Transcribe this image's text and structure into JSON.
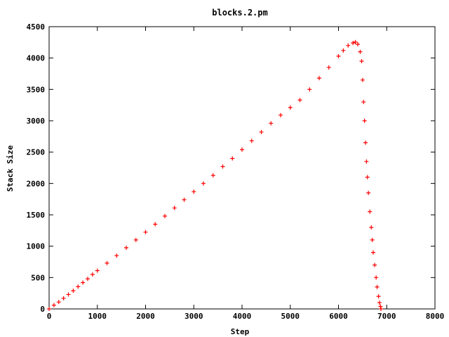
{
  "chart_data": {
    "type": "scatter",
    "title": "blocks.2.pm",
    "xlabel": "Step",
    "ylabel": "Stack Size",
    "xlim": [
      0,
      8000
    ],
    "ylim": [
      0,
      4500
    ],
    "xticks": [
      0,
      1000,
      2000,
      3000,
      4000,
      5000,
      6000,
      7000,
      8000
    ],
    "yticks": [
      0,
      500,
      1000,
      1500,
      2000,
      2500,
      3000,
      3500,
      4000,
      4500
    ],
    "xtick_labels": [
      "0",
      "1000",
      "2000",
      "3000",
      "4000",
      "5000",
      "6000",
      "7000",
      "8000"
    ],
    "ytick_labels": [
      "0",
      "500",
      "1000",
      "1500",
      "2000",
      "2500",
      "3000",
      "3500",
      "4000",
      "4500"
    ],
    "grid": false,
    "marker": "+",
    "series": [
      {
        "color": "#ff0000",
        "points": [
          [
            0,
            0
          ],
          [
            100,
            60
          ],
          [
            200,
            110
          ],
          [
            300,
            170
          ],
          [
            400,
            230
          ],
          [
            500,
            290
          ],
          [
            600,
            355
          ],
          [
            700,
            420
          ],
          [
            800,
            480
          ],
          [
            900,
            550
          ],
          [
            1000,
            610
          ],
          [
            1200,
            730
          ],
          [
            1400,
            850
          ],
          [
            1600,
            975
          ],
          [
            1800,
            1100
          ],
          [
            2000,
            1225
          ],
          [
            2200,
            1350
          ],
          [
            2400,
            1480
          ],
          [
            2600,
            1610
          ],
          [
            2800,
            1740
          ],
          [
            3000,
            1870
          ],
          [
            3200,
            2000
          ],
          [
            3400,
            2130
          ],
          [
            3600,
            2270
          ],
          [
            3800,
            2400
          ],
          [
            4000,
            2540
          ],
          [
            4200,
            2680
          ],
          [
            4400,
            2820
          ],
          [
            4600,
            2960
          ],
          [
            4800,
            3090
          ],
          [
            5000,
            3210
          ],
          [
            5200,
            3330
          ],
          [
            5400,
            3500
          ],
          [
            5600,
            3680
          ],
          [
            5800,
            3850
          ],
          [
            6000,
            4030
          ],
          [
            6100,
            4120
          ],
          [
            6200,
            4200
          ],
          [
            6300,
            4240
          ],
          [
            6350,
            4255
          ],
          [
            6400,
            4220
          ],
          [
            6450,
            4100
          ],
          [
            6480,
            3950
          ],
          [
            6500,
            3650
          ],
          [
            6520,
            3300
          ],
          [
            6540,
            3000
          ],
          [
            6560,
            2650
          ],
          [
            6580,
            2350
          ],
          [
            6600,
            2100
          ],
          [
            6620,
            1850
          ],
          [
            6650,
            1550
          ],
          [
            6680,
            1300
          ],
          [
            6700,
            1100
          ],
          [
            6720,
            900
          ],
          [
            6750,
            700
          ],
          [
            6780,
            500
          ],
          [
            6800,
            350
          ],
          [
            6830,
            200
          ],
          [
            6850,
            100
          ],
          [
            6870,
            40
          ],
          [
            6880,
            0
          ]
        ]
      }
    ]
  }
}
